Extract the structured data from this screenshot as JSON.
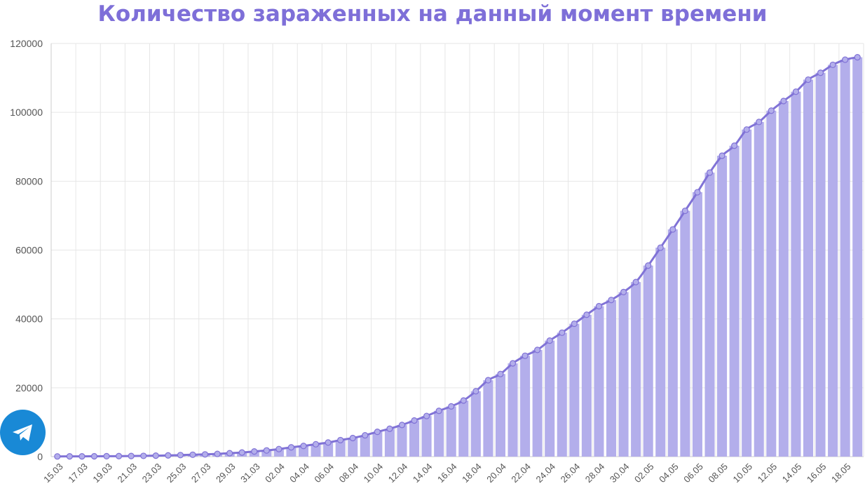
{
  "chart_data": {
    "type": "bar",
    "title": "Количество зараженных на данный момент времени",
    "xlabel": "",
    "ylabel": "",
    "ylim": [
      0,
      120000
    ],
    "yticks": [
      0,
      20000,
      40000,
      60000,
      80000,
      100000,
      120000
    ],
    "grid": true,
    "legend": "none",
    "categories": [
      "15.03",
      "16.03",
      "17.03",
      "18.03",
      "19.03",
      "20.03",
      "21.03",
      "22.03",
      "23.03",
      "24.03",
      "25.03",
      "26.03",
      "27.03",
      "28.03",
      "29.03",
      "30.03",
      "31.03",
      "01.04",
      "02.04",
      "03.04",
      "04.04",
      "05.04",
      "06.04",
      "07.04",
      "08.04",
      "09.04",
      "10.04",
      "11.04",
      "12.04",
      "13.04",
      "14.04",
      "15.04",
      "16.04",
      "17.04",
      "18.04",
      "19.04",
      "20.04",
      "21.04",
      "22.04",
      "23.04",
      "24.04",
      "25.04",
      "26.04",
      "27.04",
      "28.04",
      "29.04",
      "30.04",
      "01.05",
      "02.05",
      "03.05",
      "04.05",
      "05.05",
      "06.05",
      "07.05",
      "08.05",
      "09.05",
      "10.05",
      "11.05",
      "12.05",
      "13.05",
      "14.05",
      "15.05",
      "16.05",
      "17.05",
      "18.05",
      "19.05"
    ],
    "visible_tick_labels": [
      "15.03",
      "17.03",
      "19.03",
      "21.03",
      "23.03",
      "25.03",
      "27.03",
      "29.03",
      "31.03",
      "02.04",
      "04.04",
      "06.04",
      "08.04",
      "10.04",
      "12.04",
      "14.04",
      "16.04",
      "18.04",
      "20.04",
      "22.04",
      "24.04",
      "26.04",
      "28.04",
      "30.04",
      "02.05",
      "04.05",
      "06.05",
      "08.05",
      "10.05",
      "12.05",
      "14.05",
      "16.05",
      "18.05"
    ],
    "series": [
      {
        "values": [
          60,
          70,
          80,
          100,
          120,
          150,
          180,
          220,
          280,
          350,
          450,
          550,
          650,
          800,
          1000,
          1200,
          1500,
          1800,
          2200,
          2700,
          3100,
          3600,
          4100,
          4800,
          5400,
          6200,
          7200,
          8100,
          9200,
          10500,
          11800,
          13300,
          14600,
          16300,
          19000,
          22200,
          24000,
          27100,
          29300,
          31000,
          33700,
          36000,
          38600,
          41200,
          43700,
          45500,
          47800,
          50700,
          55500,
          60700,
          66000,
          71400,
          76800,
          82500,
          87400,
          90300,
          95000,
          97200,
          100500,
          103300,
          106000,
          109500,
          111500,
          113800,
          115300,
          116000
        ]
      }
    ],
    "colors": {
      "bar": "#b3aeeb",
      "line": "#8072d6",
      "title": "#7e6fd8",
      "grid": "#e6e6e6"
    }
  },
  "telegram": {
    "icon": "telegram-icon"
  }
}
